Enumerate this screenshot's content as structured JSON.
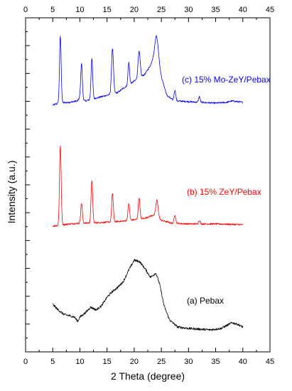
{
  "chart_data": {
    "type": "line",
    "xlabel": "2 Theta (degree)",
    "ylabel": "Intensity (a.u.)",
    "xlim": [
      0,
      45
    ],
    "x_ticks": [
      "0",
      "5",
      "10",
      "15",
      "20",
      "25",
      "30",
      "35",
      "40",
      "45"
    ],
    "y_tick_labels": false,
    "grid": false,
    "series": [
      {
        "name": "(c) 15% Mo-ZeY/Pebax",
        "color": "#0000ff",
        "baseline_y": 148,
        "background": [
          [
            5,
            0
          ],
          [
            6,
            3
          ],
          [
            8,
            4
          ],
          [
            9.5,
            6
          ],
          [
            10,
            10
          ],
          [
            11,
            6
          ],
          [
            12,
            8
          ],
          [
            14,
            12
          ],
          [
            16,
            16
          ],
          [
            17,
            18
          ],
          [
            18,
            24
          ],
          [
            19,
            28
          ],
          [
            20,
            34
          ],
          [
            21,
            38
          ],
          [
            22,
            44
          ],
          [
            23,
            56
          ],
          [
            24,
            80
          ],
          [
            25,
            40
          ],
          [
            26,
            14
          ],
          [
            27,
            8
          ],
          [
            28,
            6
          ],
          [
            30,
            5
          ],
          [
            32,
            4
          ],
          [
            35,
            3
          ],
          [
            37,
            4
          ],
          [
            38,
            6
          ],
          [
            40,
            4
          ]
        ],
        "peaks": [
          [
            6.4,
            94,
            0.15
          ],
          [
            10.3,
            50,
            0.15
          ],
          [
            12.2,
            58,
            0.15
          ],
          [
            16,
            64,
            0.18
          ],
          [
            19,
            32,
            0.15
          ],
          [
            20.9,
            38,
            0.2
          ],
          [
            24.2,
            22,
            0.3
          ],
          [
            27.5,
            14,
            0.15
          ],
          [
            32,
            8,
            0.15
          ]
        ]
      },
      {
        "name": "(b) 15% ZeY/Pebax",
        "color": "#ff0000",
        "baseline_y": 318,
        "background": [
          [
            5,
            0
          ],
          [
            8,
            3
          ],
          [
            10,
            4
          ],
          [
            14,
            5
          ],
          [
            18,
            7
          ],
          [
            20,
            9
          ],
          [
            22,
            11
          ],
          [
            23,
            14
          ],
          [
            24,
            16
          ],
          [
            25,
            8
          ],
          [
            27,
            4
          ],
          [
            30,
            3
          ],
          [
            35,
            3
          ],
          [
            40,
            2
          ]
        ],
        "peaks": [
          [
            6.4,
            112,
            0.15
          ],
          [
            10.3,
            28,
            0.15
          ],
          [
            12.2,
            60,
            0.15
          ],
          [
            16,
            40,
            0.15
          ],
          [
            19,
            24,
            0.15
          ],
          [
            20.9,
            30,
            0.15
          ],
          [
            24.2,
            22,
            0.2
          ],
          [
            27.5,
            12,
            0.15
          ],
          [
            32,
            5,
            0.15
          ]
        ]
      },
      {
        "name": "(a) Pebax",
        "color": "#000000",
        "baseline_y": 470,
        "background": [
          [
            5,
            42
          ],
          [
            6,
            34
          ],
          [
            7,
            28
          ],
          [
            8,
            26
          ],
          [
            9,
            24
          ],
          [
            9.6,
            18
          ],
          [
            10,
            24
          ],
          [
            11,
            30
          ],
          [
            12,
            38
          ],
          [
            13,
            34
          ],
          [
            14,
            40
          ],
          [
            15,
            52
          ],
          [
            16,
            60
          ],
          [
            17,
            66
          ],
          [
            18,
            74
          ],
          [
            19,
            90
          ],
          [
            20,
            104
          ],
          [
            21,
            102
          ],
          [
            22,
            92
          ],
          [
            23,
            80
          ],
          [
            24,
            86
          ],
          [
            24.7,
            70
          ],
          [
            25.5,
            40
          ],
          [
            26.5,
            20
          ],
          [
            28,
            10
          ],
          [
            30,
            8
          ],
          [
            32,
            7
          ],
          [
            34,
            6
          ],
          [
            36,
            8
          ],
          [
            37,
            12
          ],
          [
            38,
            16
          ],
          [
            39,
            14
          ],
          [
            40,
            10
          ]
        ],
        "peaks": []
      }
    ],
    "annotations": [
      {
        "text": "(c) 15% Mo-ZeY/Pebax",
        "color": "#0000ff"
      },
      {
        "text": "(b) 15% ZeY/Pebax",
        "color": "#ff0000"
      },
      {
        "text": "(a) Pebax",
        "color": "#000000"
      }
    ]
  }
}
